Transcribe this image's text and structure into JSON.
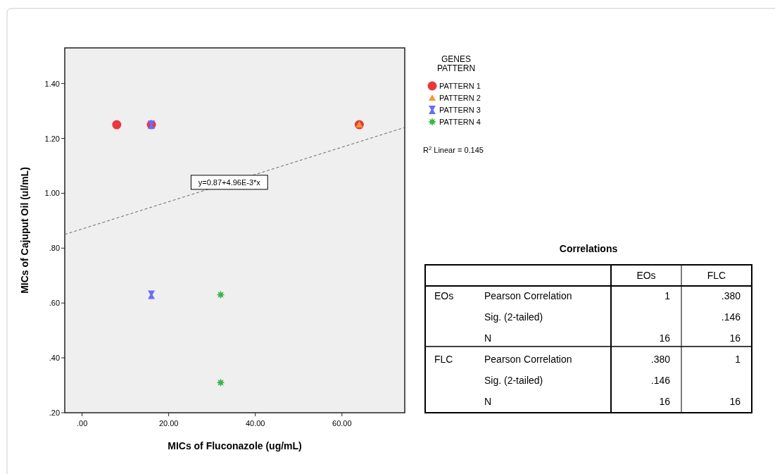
{
  "chart_data": [
    {
      "type": "scatter",
      "xlabel": "MICs of Fluconazole (ug/mL)",
      "ylabel": "MICs of Cajuput Oil (ul/mL)",
      "legend_title": "GENES PATTERN",
      "legend": "right",
      "xlim": [
        -4,
        74.5
      ],
      "xticks": [
        {
          "value": 0,
          "label": ".00"
        },
        {
          "value": 20,
          "label": "20.00"
        },
        {
          "value": 40,
          "label": "40.00"
        },
        {
          "value": 60,
          "label": "60.00"
        }
      ],
      "ylim": [
        0.2,
        1.53
      ],
      "yticks": [
        {
          "value": 0.2,
          "label": ".20"
        },
        {
          "value": 0.4,
          "label": ".40"
        },
        {
          "value": 0.6,
          "label": ".60"
        },
        {
          "value": 0.8,
          "label": ".80"
        },
        {
          "value": 1.0,
          "label": "1.00"
        },
        {
          "value": 1.2,
          "label": "1.20"
        },
        {
          "value": 1.4,
          "label": "1.40"
        }
      ],
      "grid": false,
      "series": [
        {
          "name": "PATTERN 1",
          "color": "#e8383d",
          "marker": "circle",
          "x": [
            8,
            16,
            64
          ],
          "values": [
            1.25,
            1.25,
            1.25
          ]
        },
        {
          "name": "PATTERN 2",
          "color": "#f39c2d",
          "marker": "triangle",
          "x": [
            64
          ],
          "values": [
            1.25
          ]
        },
        {
          "name": "PATTERN 3",
          "color": "#6a6aff",
          "x": [
            16,
            16
          ],
          "values": [
            1.25,
            0.63
          ]
        },
        {
          "name": "PATTERN 4",
          "color": "#3cb44b",
          "marker": "star",
          "x": [
            32,
            32
          ],
          "values": [
            0.63,
            0.31
          ]
        },
        {
          "type": "line",
          "color": "#666666",
          "line_style": "dashed",
          "x": [
            -4,
            74.5
          ],
          "values": [
            0.85,
            1.24
          ]
        }
      ],
      "annotations": [
        {
          "text": "y=0.87+4.96E-3*x",
          "x": 34,
          "y": 1.04
        },
        "R$^{2}$ Linear = 0.145"
      ]
    },
    {
      "type": "other",
      "title": "Correlations",
      "categories": [
        "EOs",
        "FLC"
      ],
      "y2_categories": [
        "EOs",
        null,
        null,
        "FLC",
        null,
        null
      ],
      "y_categories": [
        "Pearson Correlation",
        "Sig. (2-tailed)",
        "N",
        "Pearson Correlation",
        "Sig. (2-tailed)",
        "N"
      ],
      "cell_labels": [
        [
          "1",
          ".380"
        ],
        [
          null,
          ".146"
        ],
        [
          "16",
          "16"
        ],
        [
          ".380",
          "1"
        ],
        [
          ".146",
          null
        ],
        [
          "16",
          "16"
        ]
      ]
    }
  ]
}
